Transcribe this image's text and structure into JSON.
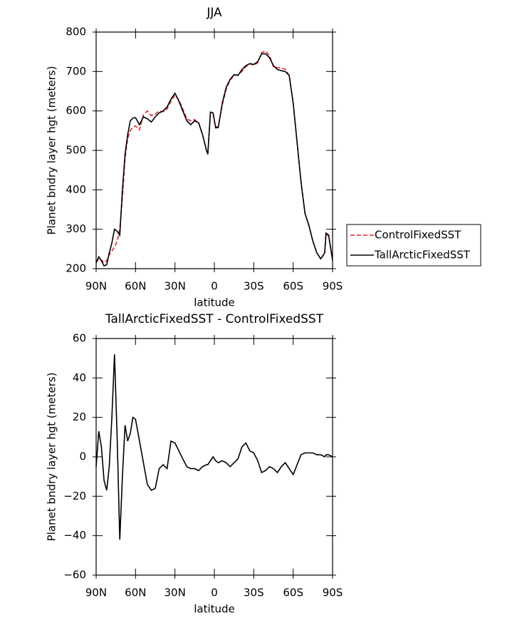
{
  "chart_data": [
    {
      "type": "line",
      "title": "JJA",
      "xlabel": "latitude",
      "ylabel": "Planet bndry layer hgt (meters)",
      "x": [
        90,
        88,
        86,
        84,
        82,
        80,
        78,
        76,
        74,
        72,
        70,
        68,
        66,
        64,
        62,
        60,
        57,
        54,
        51,
        48,
        45,
        42,
        39,
        36,
        33,
        30,
        27,
        24,
        21,
        18,
        15,
        12,
        9,
        6,
        5,
        3,
        1,
        -1,
        -3,
        -6,
        -9,
        -12,
        -15,
        -18,
        -21,
        -24,
        -27,
        -30,
        -33,
        -36,
        -39,
        -42,
        -45,
        -48,
        -51,
        -54,
        -57,
        -60,
        -63,
        -66,
        -69,
        -72,
        -75,
        -78,
        -81,
        -84,
        -85,
        -87,
        -90
      ],
      "series": [
        {
          "name": "ControlFixedSST",
          "color": "#e0262c",
          "dash": true,
          "values": [
            215,
            225,
            222,
            215,
            220,
            235,
            245,
            255,
            270,
            300,
            380,
            480,
            530,
            550,
            558,
            562,
            552,
            590,
            600,
            588,
            592,
            600,
            598,
            605,
            625,
            640,
            628,
            605,
            580,
            575,
            578,
            570,
            540,
            500,
            490,
            595,
            592,
            560,
            560,
            615,
            655,
            678,
            690,
            692,
            700,
            712,
            720,
            716,
            722,
            748,
            752,
            740,
            712,
            710,
            708,
            706,
            690,
            620,
            520,
            420,
            340,
            308,
            270,
            240,
            225,
            238,
            288,
            283,
            220
          ]
        },
        {
          "name": "TallArcticFixedSST",
          "color": "#000000",
          "dash": false,
          "values": [
            215,
            230,
            220,
            207,
            210,
            240,
            265,
            300,
            295,
            285,
            400,
            490,
            540,
            575,
            582,
            583,
            565,
            585,
            580,
            572,
            585,
            595,
            600,
            610,
            630,
            645,
            625,
            600,
            575,
            565,
            575,
            570,
            540,
            500,
            490,
            597,
            595,
            557,
            558,
            620,
            660,
            680,
            692,
            690,
            705,
            715,
            720,
            718,
            725,
            745,
            745,
            735,
            715,
            705,
            702,
            700,
            690,
            620,
            520,
            420,
            340,
            310,
            270,
            240,
            225,
            240,
            290,
            285,
            222
          ]
        }
      ],
      "xlim": [
        90,
        -90
      ],
      "xticks": [
        {
          "value": 90,
          "label": "90N"
        },
        {
          "value": 60,
          "label": "60N"
        },
        {
          "value": 30,
          "label": "30N"
        },
        0,
        {
          "value": -30,
          "label": "30S"
        },
        {
          "value": -60,
          "label": "60S"
        },
        {
          "value": -90,
          "label": "90S"
        }
      ],
      "ylim": [
        200,
        800
      ],
      "yticks": [
        200,
        300,
        400,
        500,
        600,
        700,
        800
      ],
      "legend": "right"
    },
    {
      "type": "line",
      "title": "TallArcticFixedSST - ControlFixedSST",
      "xlabel": "latitude",
      "ylabel": "Planet bndry layer hgt (meters)",
      "x": [
        90,
        88,
        86,
        84,
        82,
        80,
        78,
        76,
        74,
        72,
        70,
        68,
        66,
        64,
        62,
        60,
        57,
        54,
        51,
        48,
        45,
        42,
        39,
        36,
        33,
        30,
        27,
        24,
        21,
        18,
        15,
        12,
        9,
        6,
        5,
        3,
        1,
        -1,
        -3,
        -6,
        -9,
        -12,
        -15,
        -18,
        -21,
        -24,
        -27,
        -30,
        -33,
        -36,
        -39,
        -42,
        -45,
        -48,
        -51,
        -54,
        -57,
        -60,
        -63,
        -66,
        -69,
        -72,
        -75,
        -78,
        -81,
        -84,
        -85,
        -87,
        -90
      ],
      "series": [
        {
          "color": "#000000",
          "dash": false,
          "values": [
            -5,
            13,
            5,
            -12,
            -17,
            -5,
            20,
            52,
            10,
            -42,
            -10,
            16,
            8,
            12,
            20,
            19,
            8,
            -3,
            -14,
            -17,
            -16,
            -6,
            -4,
            -6,
            8,
            7,
            3,
            -1,
            -5,
            -6,
            -6,
            -7,
            -5,
            -4,
            -4,
            -2,
            0,
            -2,
            -3,
            -2,
            -3,
            -5,
            -3,
            -1,
            5,
            7,
            3,
            2,
            -2,
            -8,
            -7,
            -5,
            -6,
            -8,
            -5,
            -3,
            -6,
            -9,
            -4,
            1,
            2,
            2,
            2,
            1,
            1,
            0,
            1,
            1,
            0
          ]
        }
      ],
      "xlim": [
        90,
        -90
      ],
      "xticks": [
        {
          "value": 90,
          "label": "90N"
        },
        {
          "value": 60,
          "label": "60N"
        },
        {
          "value": 30,
          "label": "30N"
        },
        0,
        {
          "value": -30,
          "label": "30S"
        },
        {
          "value": -60,
          "label": "60S"
        },
        {
          "value": -90,
          "label": "90S"
        }
      ],
      "ylim": [
        -60,
        60
      ],
      "yticks": [
        {
          "value": -60,
          "label": "−60"
        },
        {
          "value": -40,
          "label": "−40"
        },
        {
          "value": -20,
          "label": "−20"
        },
        0,
        20,
        40,
        60
      ]
    }
  ]
}
